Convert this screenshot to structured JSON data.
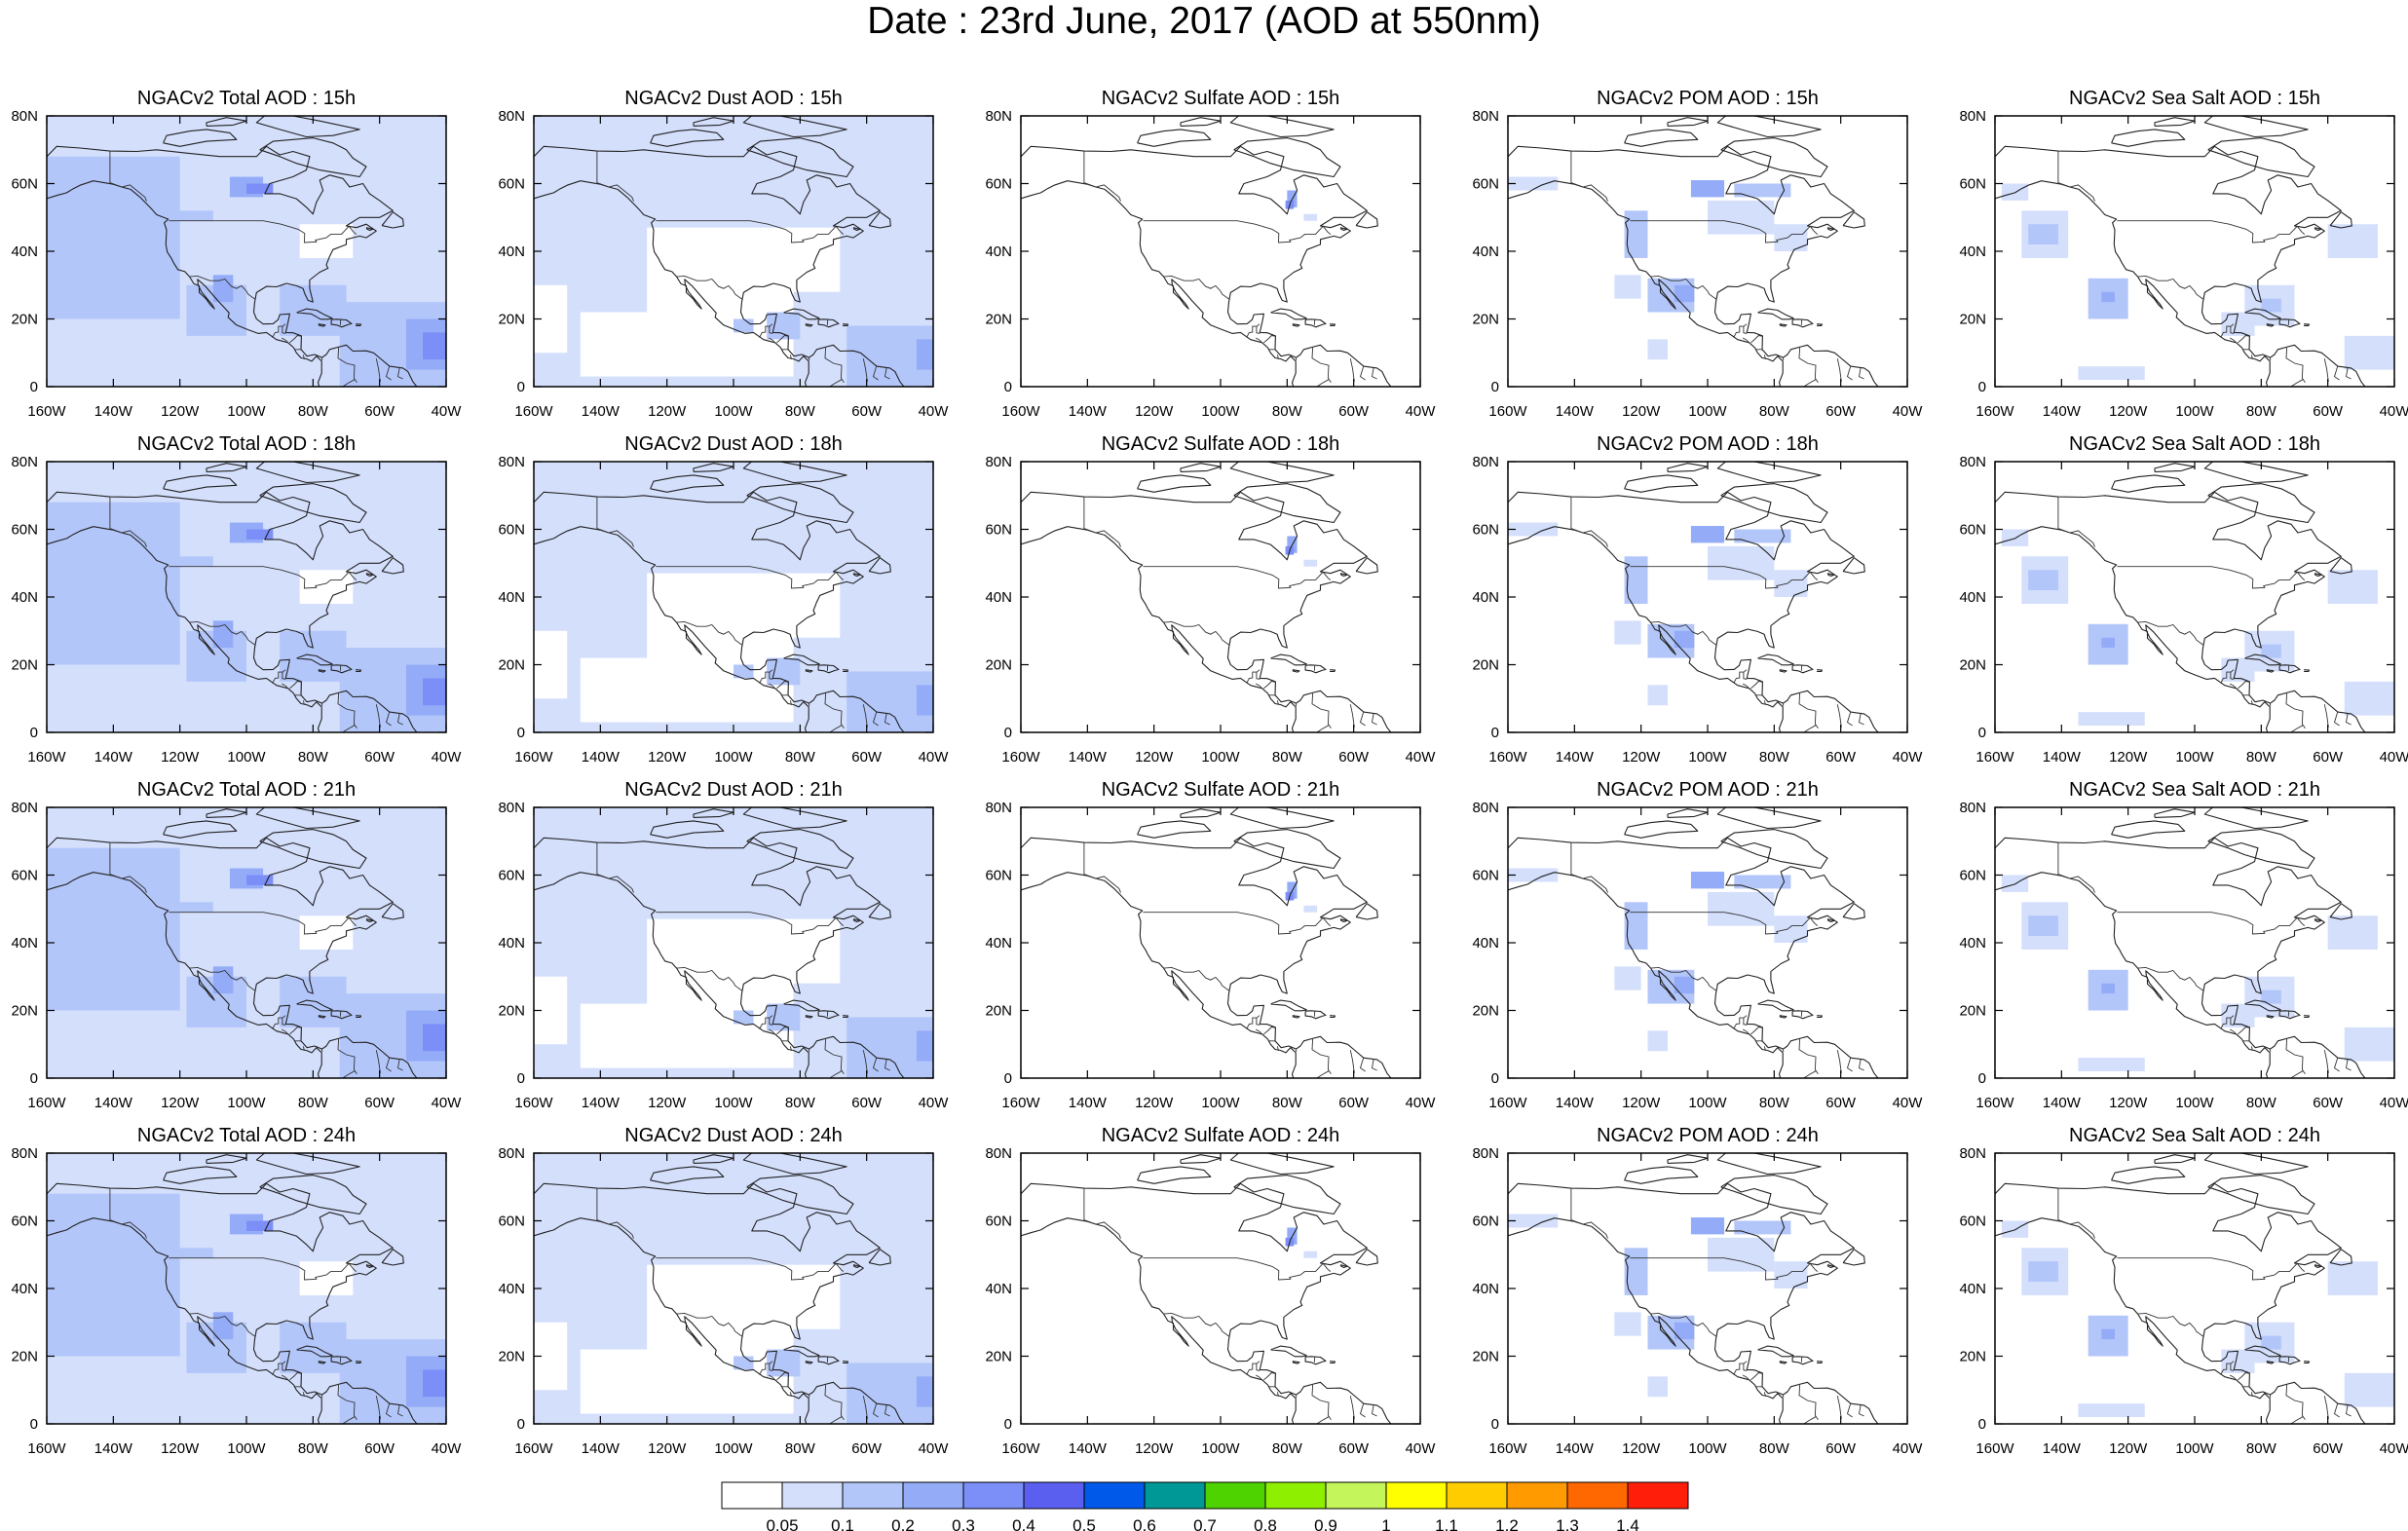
{
  "title": "Date : 23rd June, 2017 (AOD at 550nm)",
  "columns": [
    {
      "name": "Total",
      "titles": [
        "NGACv2 Total AOD : 15h",
        "NGACv2 Total AOD : 18h",
        "NGACv2 Total AOD : 21h",
        "NGACv2 Total AOD : 24h"
      ]
    },
    {
      "name": "Dust",
      "titles": [
        "NGACv2 Dust AOD : 15h",
        "NGACv2 Dust AOD : 18h",
        "NGACv2 Dust AOD : 21h",
        "NGACv2 Dust AOD : 24h"
      ]
    },
    {
      "name": "Sulfate",
      "titles": [
        "NGACv2 Sulfate AOD : 15h",
        "NGACv2 Sulfate AOD : 18h",
        "NGACv2 Sulfate AOD : 21h",
        "NGACv2 Sulfate AOD : 24h"
      ]
    },
    {
      "name": "POM",
      "titles": [
        "NGACv2 POM AOD : 15h",
        "NGACv2 POM AOD : 18h",
        "NGACv2 POM AOD : 21h",
        "NGACv2 POM AOD : 24h"
      ]
    },
    {
      "name": "Sea Salt",
      "titles": [
        "NGACv2 Sea Salt AOD : 15h",
        "NGACv2 Sea Salt AOD : 18h",
        "NGACv2 Sea Salt AOD : 21h",
        "NGACv2 Sea Salt  AOD : 24h"
      ]
    }
  ],
  "x_ticks": [
    "160W",
    "140W",
    "120W",
    "100W",
    "80W",
    "60W",
    "40W"
  ],
  "y_ticks": [
    "0",
    "20N",
    "40N",
    "60N",
    "80N"
  ],
  "colorbar": {
    "colors": [
      "#ffffff",
      "#d4dffc",
      "#b3c6fa",
      "#94acf8",
      "#7c8ef7",
      "#5a5ff0",
      "#0059e8",
      "#009897",
      "#4ed200",
      "#8ef000",
      "#c4f55a",
      "#ffff00",
      "#ffcc00",
      "#ff9a00",
      "#ff6800",
      "#ff1e0a"
    ],
    "labels": [
      "0.05",
      "0.1",
      "0.2",
      "0.3",
      "0.4",
      "0.5",
      "0.6",
      "0.7",
      "0.8",
      "0.9",
      "1",
      "1.1",
      "1.2",
      "1.3",
      "1.4"
    ]
  }
}
